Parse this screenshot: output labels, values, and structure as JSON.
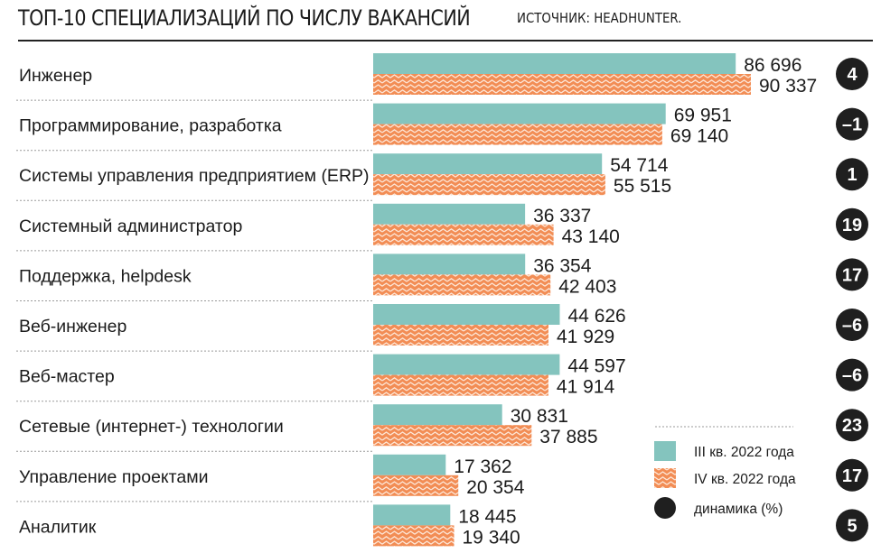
{
  "header": {
    "title": "ТОП-10 СПЕЦИАЛИЗАЦИЙ ПО ЧИСЛУ ВАКАНСИЙ",
    "source": "ИСТОЧНИК: HEADHUNTER."
  },
  "colors": {
    "q3": "#84c4be",
    "q4": "#f28d55",
    "q4_zigzag": "#fde7d8",
    "badge": "#1f1f1f",
    "badge_text": "#ffffff",
    "separator": "#9a9a9a"
  },
  "chart_data": {
    "type": "bar",
    "orientation": "horizontal",
    "categories": [
      "Инженер",
      "Программирование, разработка",
      "Системы управления предприятием (ERP)",
      "Системный администратор",
      "Поддержка, helpdesk",
      "Веб-инженер",
      "Веб-мастер",
      "Сетевые (интернет-) технологии",
      "Управление проектами",
      "Аналитик"
    ],
    "series": [
      {
        "name": "III кв. 2022 года",
        "values": [
          86696,
          69951,
          54714,
          36337,
          36354,
          44626,
          44597,
          30831,
          17362,
          18445
        ],
        "labels": [
          "86 696",
          "69 951",
          "54 714",
          "36 337",
          "36 354",
          "44 626",
          "44 597",
          "30 831",
          "17 362",
          "18 445"
        ]
      },
      {
        "name": "IV кв. 2022 года",
        "values": [
          90337,
          69140,
          55515,
          43140,
          42403,
          41929,
          41914,
          37885,
          20354,
          19340
        ],
        "labels": [
          "90 337",
          "69 140",
          "55 515",
          "43 140",
          "42 403",
          "41 929",
          "41 914",
          "37 885",
          "20 354",
          "19 340"
        ]
      }
    ],
    "dynamics": {
      "name": "динамика (%)",
      "values": [
        4,
        -1,
        1,
        19,
        17,
        -6,
        -6,
        23,
        17,
        5
      ],
      "labels": [
        "4",
        "–1",
        "1",
        "19",
        "17",
        "–6",
        "–6",
        "23",
        "17",
        "5"
      ]
    },
    "xlim": [
      0,
      100000
    ],
    "grid": false,
    "legend_position": "bottom-right"
  }
}
